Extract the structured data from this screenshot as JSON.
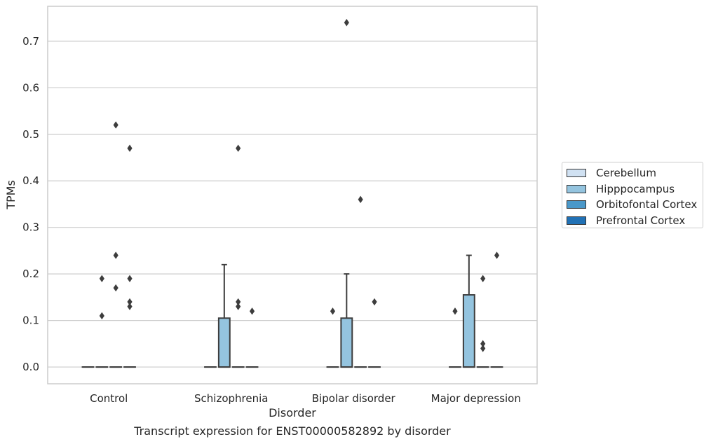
{
  "chart_data": {
    "type": "box",
    "title": "",
    "caption": "Transcript expression for ENST00000582892 by disorder",
    "xlabel": "Disorder",
    "ylabel": "TPMs",
    "ylim": [
      -0.036,
      0.775
    ],
    "yticks": [
      "0.0",
      "0.1",
      "0.2",
      "0.3",
      "0.4",
      "0.5",
      "0.6",
      "0.7"
    ],
    "grid": "horizontal",
    "legend_position": "right",
    "categories": [
      "Control",
      "Schizophrenia",
      "Bipolar disorder",
      "Major depression"
    ],
    "series": [
      {
        "name": "Cerebellum",
        "color": "#d0e1f2",
        "boxes": [
          {
            "q1": 0,
            "median": 0,
            "q3": 0,
            "whisker_low": 0,
            "whisker_high": 0,
            "outliers": []
          },
          {
            "q1": 0,
            "median": 0,
            "q3": 0,
            "whisker_low": 0,
            "whisker_high": 0,
            "outliers": []
          },
          {
            "q1": 0,
            "median": 0,
            "q3": 0,
            "whisker_low": 0,
            "whisker_high": 0,
            "outliers": []
          },
          {
            "q1": 0,
            "median": 0,
            "q3": 0,
            "whisker_low": 0,
            "whisker_high": 0,
            "outliers": []
          }
        ]
      },
      {
        "name": "Hipppocampus",
        "color": "#94c4df",
        "boxes": [
          {
            "q1": 0,
            "median": 0,
            "q3": 0,
            "whisker_low": 0,
            "whisker_high": 0,
            "outliers": [
              0.19,
              0.11
            ]
          },
          {
            "q1": 0,
            "median": 0,
            "q3": 0.105,
            "whisker_low": 0,
            "whisker_high": 0.22,
            "outliers": []
          },
          {
            "q1": 0,
            "median": 0,
            "q3": 0.105,
            "whisker_low": 0,
            "whisker_high": 0.2,
            "outliers": [
              0.74
            ]
          },
          {
            "q1": 0,
            "median": 0,
            "q3": 0.155,
            "whisker_low": 0,
            "whisker_high": 0.24,
            "outliers": []
          }
        ]
      },
      {
        "name": "Orbitofontal Cortex",
        "color": "#4a98c9",
        "boxes": [
          {
            "q1": 0,
            "median": 0,
            "q3": 0,
            "whisker_low": 0,
            "whisker_high": 0,
            "outliers": [
              0.52,
              0.24,
              0.17
            ]
          },
          {
            "q1": 0,
            "median": 0,
            "q3": 0,
            "whisker_low": 0,
            "whisker_high": 0,
            "outliers": [
              0.47,
              0.14
            ]
          },
          {
            "q1": 0,
            "median": 0,
            "q3": 0,
            "whisker_low": 0,
            "whisker_high": 0,
            "outliers": [
              0.36
            ]
          },
          {
            "q1": 0,
            "median": 0,
            "q3": 0,
            "whisker_low": 0,
            "whisker_high": 0,
            "outliers": [
              0.19,
              0.05,
              0.04
            ]
          }
        ]
      },
      {
        "name": "Prefrontal Cortex",
        "color": "#2171b5",
        "boxes": [
          {
            "q1": 0,
            "median": 0,
            "q3": 0,
            "whisker_low": 0,
            "whisker_high": 0,
            "outliers": [
              0.47,
              0.19,
              0.13
            ]
          },
          {
            "q1": 0,
            "median": 0,
            "q3": 0,
            "whisker_low": 0,
            "whisker_high": 0,
            "outliers": [
              0.12
            ]
          },
          {
            "q1": 0,
            "median": 0,
            "q3": 0,
            "whisker_low": 0,
            "whisker_high": 0,
            "outliers": [
              0.14
            ]
          },
          {
            "q1": 0,
            "median": 0,
            "q3": 0,
            "whisker_low": 0,
            "whisker_high": 0,
            "outliers": [
              0.24
            ]
          }
        ]
      }
    ],
    "extra_outliers": [
      {
        "category": "Control",
        "series": "Prefrontal Cortex",
        "value": 0.14
      },
      {
        "category": "Schizophrenia",
        "series": "Orbitofontal Cortex",
        "value": 0.13
      },
      {
        "category": "Bipolar disorder",
        "series": "Cerebellum",
        "value": 0.12
      },
      {
        "category": "Major depression",
        "series": "Cerebellum",
        "value": 0.12
      }
    ]
  }
}
